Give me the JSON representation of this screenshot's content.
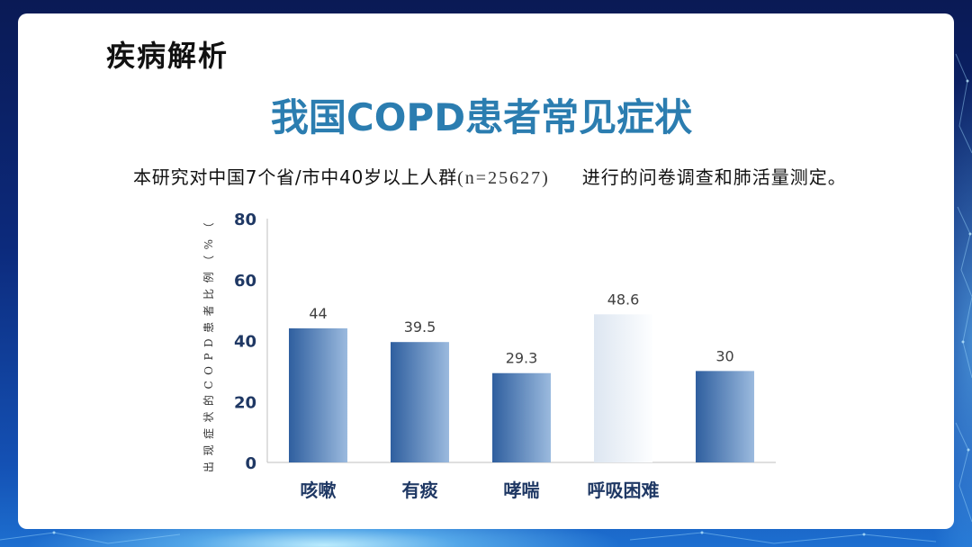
{
  "slide": {
    "section_title": "疾病解析",
    "subtitle": {
      "text_main": "本研究对中国7个省/市中40岁以上人群",
      "sample_size": "(n=25627)",
      "text_tail": "进行的问卷调查和肺活量测定。"
    }
  },
  "colors": {
    "title": "#2b7db0",
    "axis_text": "#1f3864",
    "value_text": "#404040",
    "axis_line": "#bfbfbf",
    "bar_gradient_left": "#2f5f9f",
    "bar_gradient_right": "#9bbade",
    "highlight_gradient_left": "#dde6f1",
    "highlight_gradient_right": "#fdfeff"
  },
  "chart_data": {
    "type": "bar",
    "title": "我国COPD患者常见症状",
    "ylabel": "出现症状的COPD患者比例（%（",
    "categories": [
      "咳嗽",
      "有痰",
      "哮喘",
      "呼吸困难",
      ""
    ],
    "values": [
      44,
      39.5,
      29.3,
      48.6,
      30
    ],
    "ylim": [
      0,
      80
    ],
    "yticks": [
      0,
      20,
      40,
      60,
      80
    ],
    "highlight_index": 3,
    "grid": false
  }
}
